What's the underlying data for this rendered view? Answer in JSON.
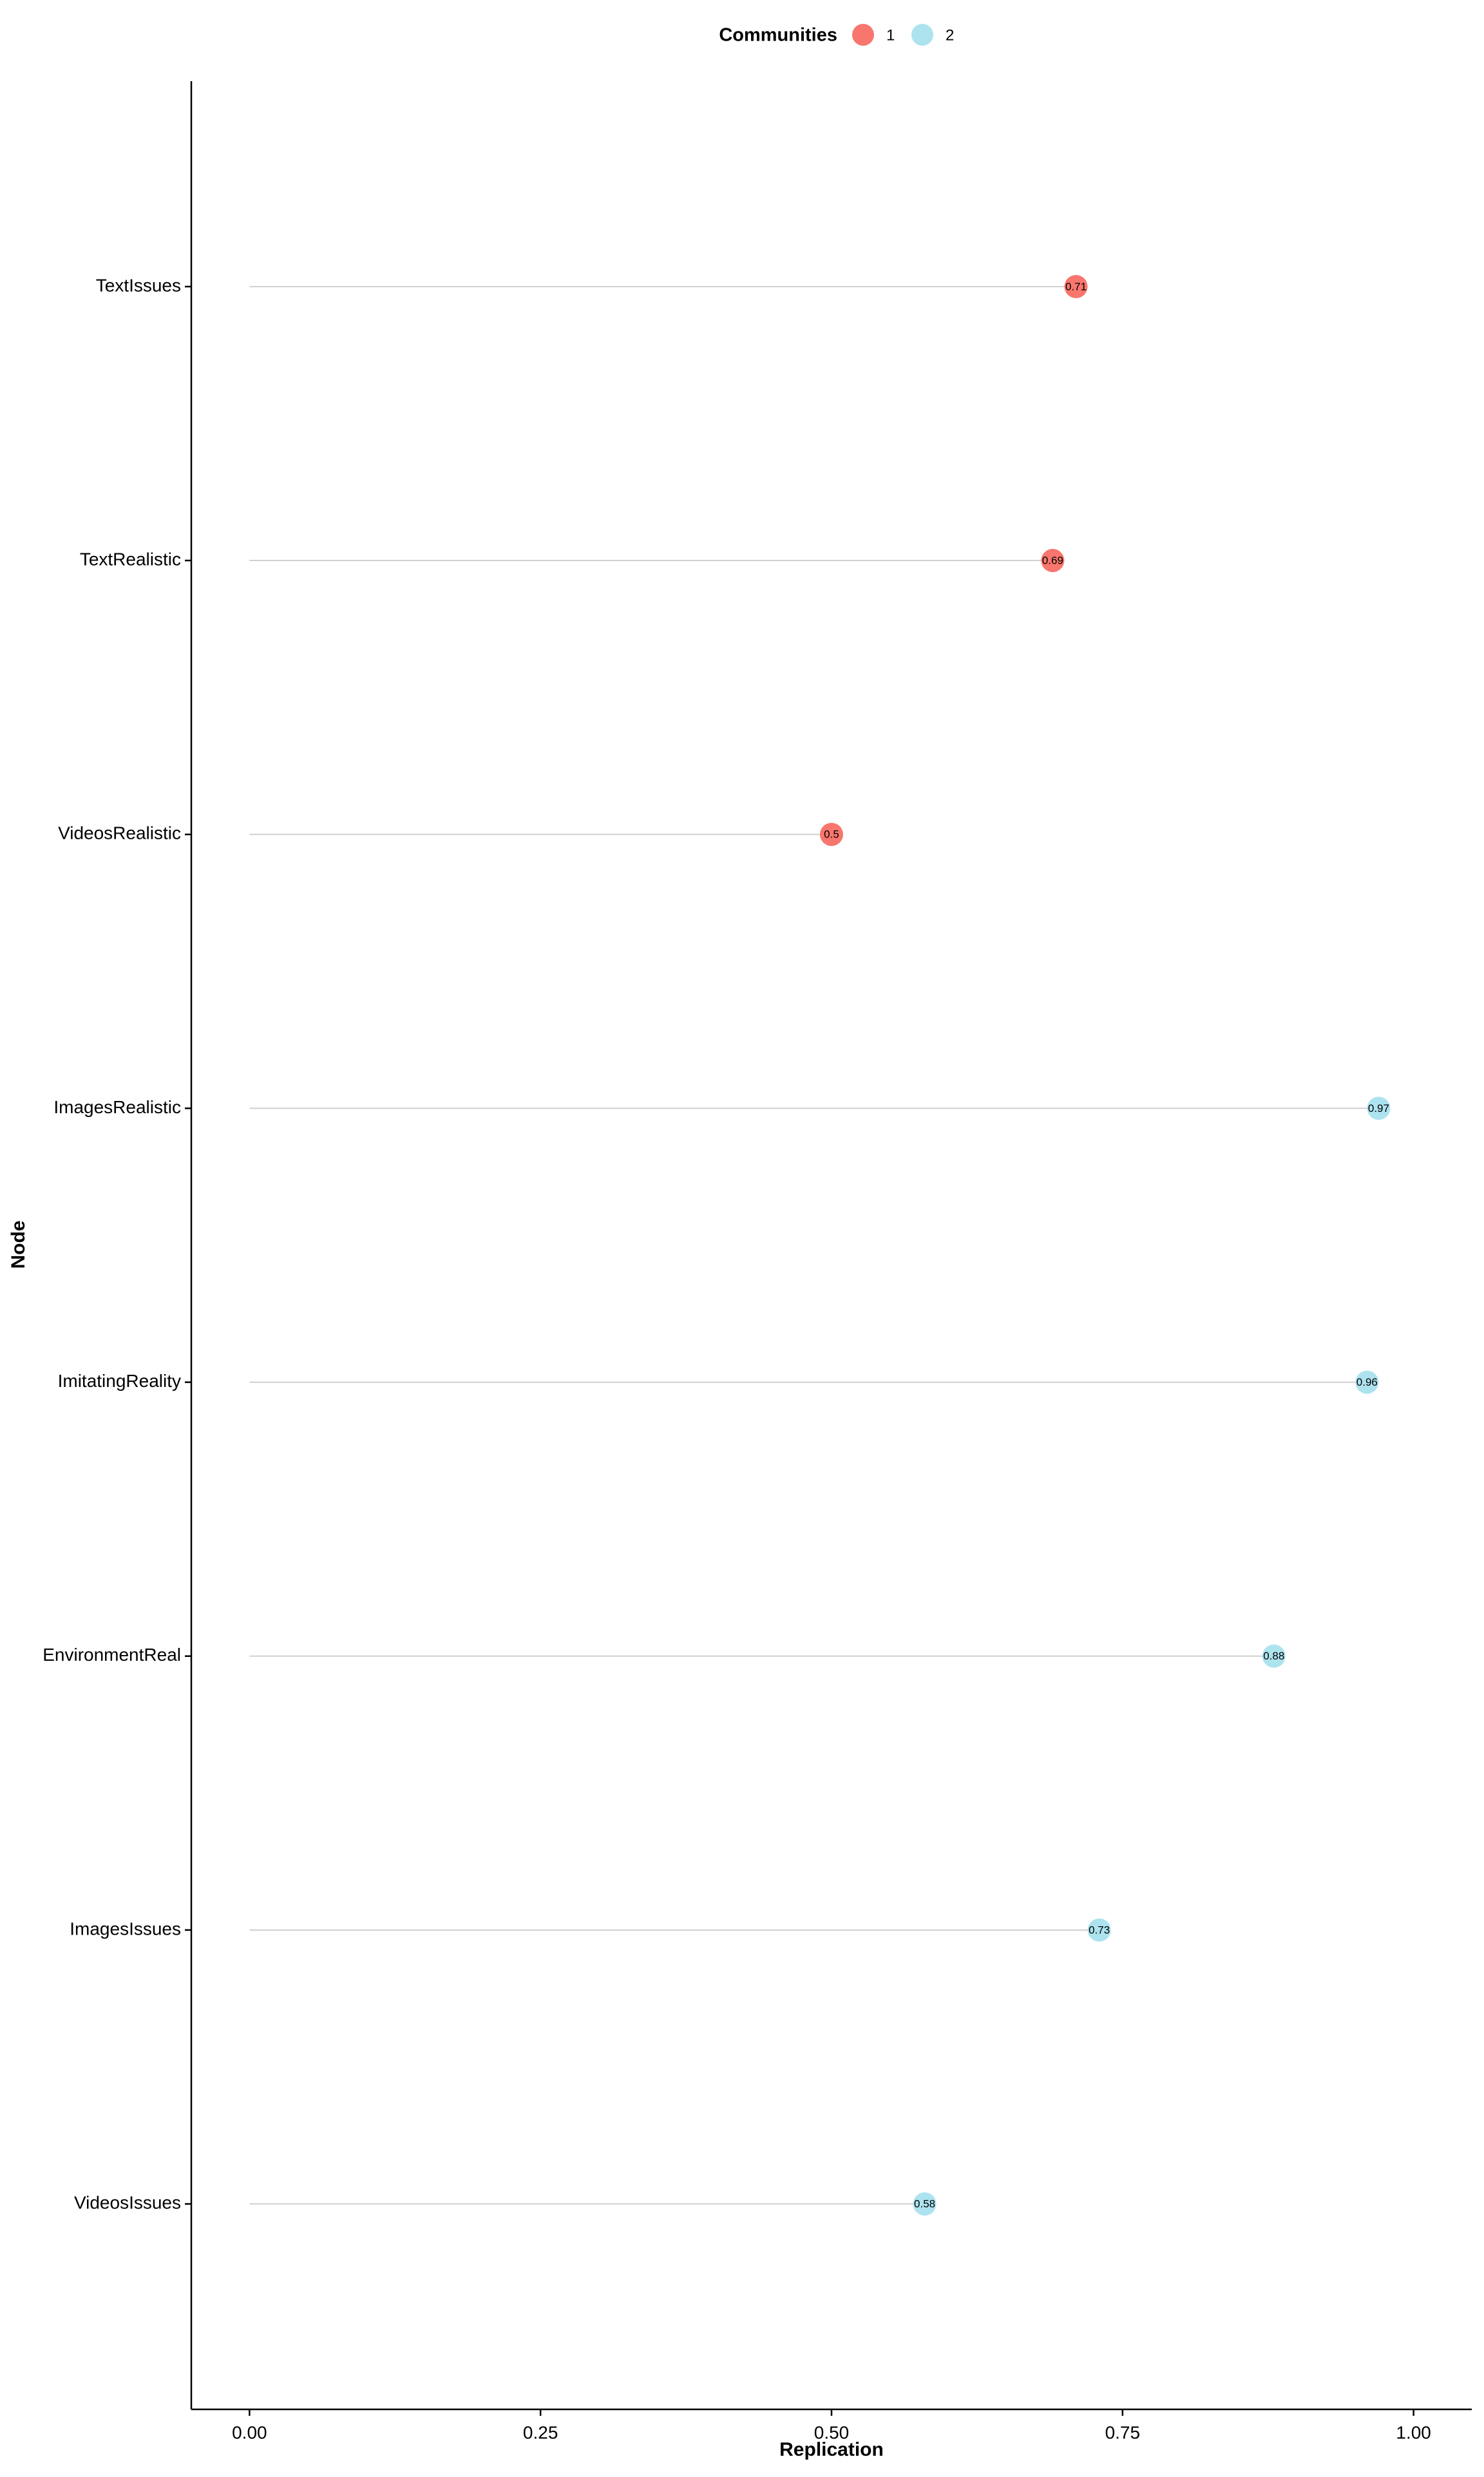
{
  "chart_data": {
    "type": "scatter",
    "style": "lollipop",
    "xlabel": "Replication",
    "ylabel": "Node",
    "xlim": [
      -0.05,
      1.05
    ],
    "x_ticks": [
      0.0,
      0.25,
      0.5,
      0.75,
      1.0
    ],
    "x_tick_labels": [
      "0.00",
      "0.25",
      "0.50",
      "0.75",
      "1.00"
    ],
    "grid": false,
    "legend": {
      "title": "Communities",
      "position": "top",
      "entries": [
        {
          "label": "1",
          "color": "#F8766D"
        },
        {
          "label": "2",
          "color": "#ADE3EF"
        }
      ]
    },
    "categories": [
      "TextIssues",
      "TextRealistic",
      "VideosRealistic",
      "ImagesRealistic",
      "ImitatingReality",
      "EnvironmentReal",
      "ImagesIssues",
      "VideosIssues"
    ],
    "points": [
      {
        "node": "TextIssues",
        "value": 0.71,
        "label": "0.71",
        "community": "1"
      },
      {
        "node": "TextRealistic",
        "value": 0.69,
        "label": "0.69",
        "community": "1"
      },
      {
        "node": "VideosRealistic",
        "value": 0.5,
        "label": "0.5",
        "community": "1"
      },
      {
        "node": "ImagesRealistic",
        "value": 0.97,
        "label": "0.97",
        "community": "2"
      },
      {
        "node": "ImitatingReality",
        "value": 0.96,
        "label": "0.96",
        "community": "2"
      },
      {
        "node": "EnvironmentReal",
        "value": 0.88,
        "label": "0.88",
        "community": "2"
      },
      {
        "node": "ImagesIssues",
        "value": 0.73,
        "label": "0.73",
        "community": "2"
      },
      {
        "node": "VideosIssues",
        "value": 0.58,
        "label": "0.58",
        "community": "2"
      }
    ]
  }
}
